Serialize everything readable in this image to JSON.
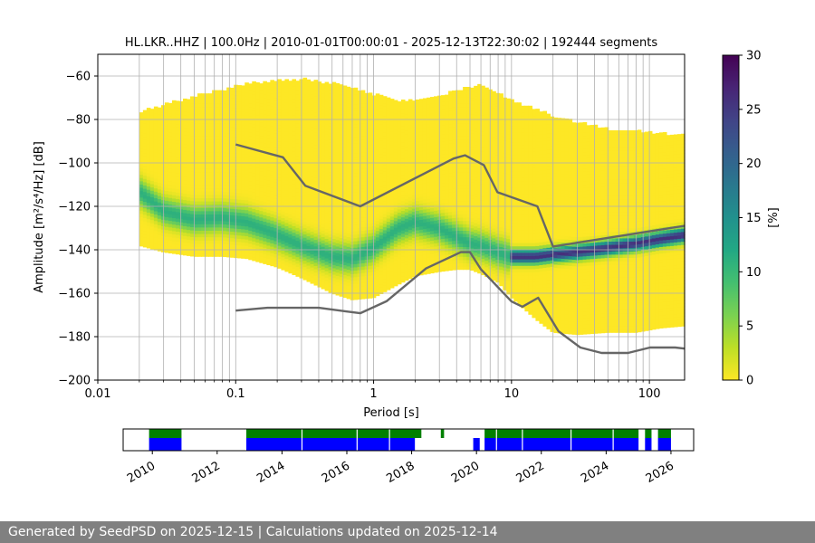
{
  "chart_data": [
    {
      "type": "heatmap",
      "title": "HL.LKR..HHZ | 100.0Hz | 2010-01-01T00:00:01 - 2025-12-13T22:30:02 | 192444 segments",
      "xlabel": "Period [s]",
      "ylabel": "Amplitude [m²/s⁴/Hz] [dB]",
      "xscale": "log",
      "xlim": [
        0.01,
        180
      ],
      "ylim": [
        -200,
        -50
      ],
      "x_ticks": [
        0.01,
        0.1,
        1,
        10,
        100
      ],
      "x_tick_labels": [
        "0.01",
        "0.1",
        "1",
        "10",
        "100"
      ],
      "y_ticks": [
        -200,
        -180,
        -160,
        -140,
        -120,
        -100,
        -80,
        -60
      ],
      "y_tick_labels": [
        "−200",
        "−180",
        "−160",
        "−140",
        "−120",
        "−100",
        "−80",
        "−60"
      ],
      "grid": true,
      "colorbar": {
        "label": "[%]",
        "range": [
          0,
          30
        ],
        "ticks": [
          0,
          5,
          10,
          15,
          20,
          25,
          30
        ],
        "colormap": "viridis_r"
      },
      "mode_curve": {
        "periods": [
          0.02,
          0.03,
          0.05,
          0.08,
          0.12,
          0.2,
          0.3,
          0.5,
          0.7,
          1.0,
          1.5,
          2.0,
          3.0,
          4.0,
          5.0,
          6.0,
          8.0,
          10,
          15,
          20,
          30,
          50,
          80,
          120,
          180
        ],
        "amplitudes": [
          -113,
          -122,
          -126,
          -125,
          -127,
          -133,
          -138,
          -143,
          -144,
          -139,
          -130,
          -127,
          -130,
          -134,
          -137,
          -138,
          -141,
          -143,
          -143,
          -142,
          -141,
          -139,
          -137,
          -135,
          -133
        ]
      },
      "distribution": {
        "periods": [
          0.02,
          0.03,
          0.05,
          0.08,
          0.12,
          0.2,
          0.3,
          0.5,
          0.7,
          1.0,
          1.5,
          2.0,
          3.0,
          4.0,
          5.0,
          6.0,
          8.0,
          10,
          15,
          20,
          30,
          50,
          80,
          120,
          180
        ],
        "upper_db": [
          -77,
          -74,
          -70,
          -67,
          -64,
          -63,
          -62,
          -64,
          -66,
          -69,
          -72,
          -72,
          -70,
          -67,
          -66,
          -65,
          -68,
          -72,
          -76,
          -79,
          -82,
          -85,
          -86,
          -87,
          -88
        ],
        "lower_db": [
          -138,
          -141,
          -143,
          -143,
          -144,
          -148,
          -153,
          -160,
          -163,
          -162,
          -156,
          -152,
          -150,
          -149,
          -149,
          -151,
          -155,
          -162,
          -172,
          -178,
          -179,
          -178,
          -178,
          -176,
          -175
        ]
      },
      "nhnm": {
        "name": "New High Noise Model",
        "periods": [
          0.1,
          0.22,
          0.32,
          0.8,
          3.8,
          4.6,
          6.3,
          7.9,
          15.4,
          20,
          354.8
        ],
        "amplitudes": [
          -91.5,
          -97.4,
          -110.5,
          -120.0,
          -98.0,
          -96.5,
          -101.0,
          -113.5,
          -120.0,
          -138.5,
          -126.0
        ]
      },
      "nlnm": {
        "name": "New Low Noise Model",
        "periods": [
          0.1,
          0.17,
          0.4,
          0.8,
          1.24,
          2.4,
          4.3,
          5.0,
          6.0,
          10.0,
          12.0,
          15.6,
          21.9,
          31.6,
          45.0,
          70.0,
          101.0,
          154.0,
          328.0
        ],
        "amplitudes": [
          -168.0,
          -166.7,
          -166.7,
          -169.2,
          -163.7,
          -148.6,
          -141.1,
          -141.1,
          -149.0,
          -163.8,
          -166.2,
          -162.1,
          -177.5,
          -185.0,
          -187.5,
          -187.5,
          -185.0,
          -185.0,
          -187.5
        ]
      }
    },
    {
      "type": "timeline",
      "x_tick_labels": [
        "2010",
        "2012",
        "2014",
        "2016",
        "2018",
        "2020",
        "2022",
        "2024",
        "2026"
      ],
      "x_ticks_year": [
        2010,
        2012,
        2014,
        2016,
        2018,
        2020,
        2022,
        2024,
        2026
      ],
      "xlim_year": [
        2009.1,
        2026.7
      ],
      "green_ranges": [
        [
          2009.9,
          2010.9
        ],
        [
          2012.9,
          2018.3
        ],
        [
          2018.9,
          2019.0
        ],
        [
          2020.25,
          2025.0
        ],
        [
          2025.2,
          2025.4
        ],
        [
          2025.6,
          2026.0
        ]
      ],
      "blue_ranges": [
        [
          2009.9,
          2010.9
        ],
        [
          2012.9,
          2018.1
        ],
        [
          2019.9,
          2020.1
        ],
        [
          2020.25,
          2025.0
        ],
        [
          2025.2,
          2025.4
        ],
        [
          2025.6,
          2026.0
        ]
      ],
      "colors": {
        "available": "#008000",
        "used": "#0000ff"
      }
    }
  ],
  "footer": {
    "text": "Generated by SeedPSD on 2025-12-15 | Calculations updated on 2025-12-14"
  }
}
